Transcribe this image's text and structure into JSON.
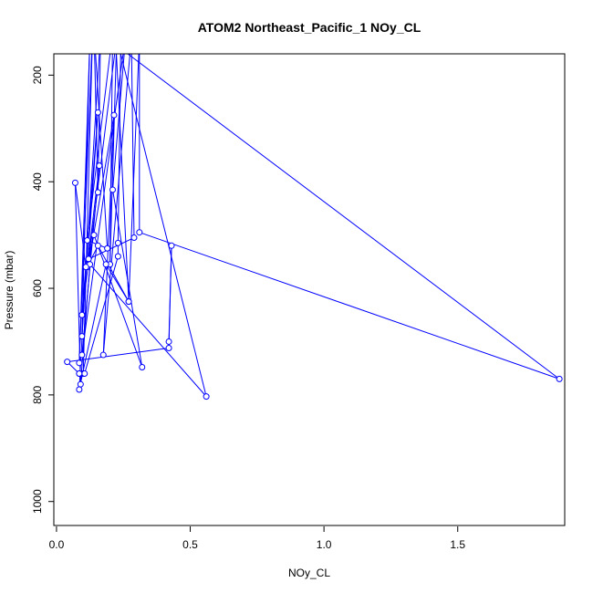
{
  "chart_data": {
    "type": "line",
    "title": "ATOM2 Northeast_Pacific_1 NOy_CL",
    "xlabel": "NOy_CL",
    "ylabel": "Pressure (mbar)",
    "xlim": [
      -0.01,
      1.9
    ],
    "ylim": [
      1045,
      160
    ],
    "y_reversed": true,
    "x_ticks": [
      0.0,
      0.5,
      1.0,
      1.5
    ],
    "x_tick_labels": [
      "0.0",
      "0.5",
      "1.0",
      "1.5"
    ],
    "y_ticks": [
      200,
      400,
      600,
      800,
      1000
    ],
    "y_tick_labels": [
      "200",
      "400",
      "600",
      "800",
      "1000"
    ],
    "series_color": "#0000ff",
    "grid": false,
    "series": [
      {
        "points": [
          [
            0.1,
            760
          ],
          [
            0.135,
            120
          ],
          [
            0.085,
            740
          ],
          [
            0.125,
            130
          ],
          [
            0.095,
            690
          ],
          [
            0.165,
            120
          ],
          [
            0.155,
            420
          ],
          [
            0.14,
            110
          ],
          [
            0.19,
            525
          ],
          [
            0.115,
            510
          ],
          [
            0.21,
            120
          ],
          [
            0.2,
            555
          ],
          [
            0.225,
            130
          ],
          [
            0.095,
            650
          ],
          [
            0.155,
            270
          ],
          [
            0.115,
            560
          ],
          [
            0.16,
            370
          ],
          [
            0.095,
            725
          ],
          [
            0.26,
            120
          ],
          [
            0.21,
            415
          ],
          [
            0.32,
            748
          ],
          [
            0.14,
            500
          ],
          [
            0.12,
            545
          ],
          [
            0.29,
            505
          ],
          [
            0.28,
            130
          ],
          [
            0.175,
            725
          ],
          [
            0.215,
            275
          ],
          [
            0.12,
            555
          ],
          [
            0.155,
            520
          ],
          [
            0.27,
            625
          ],
          [
            0.22,
            120
          ],
          [
            0.56,
            803
          ],
          [
            0.125,
            555
          ],
          [
            0.09,
            780
          ],
          [
            0.07,
            402
          ],
          [
            0.11,
            560
          ],
          [
            0.085,
            790
          ],
          [
            0.185,
            555
          ],
          [
            0.27,
            625
          ],
          [
            0.31,
            130
          ],
          [
            0.31,
            495
          ],
          [
            1.88,
            770
          ],
          [
            0.24,
            150
          ],
          [
            0.23,
            515
          ],
          [
            0.23,
            540
          ],
          [
            0.105,
            760
          ],
          [
            0.085,
            760
          ],
          [
            0.085,
            760
          ],
          [
            0.04,
            738
          ],
          [
            0.42,
            712
          ],
          [
            0.43,
            520
          ],
          [
            0.42,
            700
          ]
        ]
      }
    ]
  }
}
